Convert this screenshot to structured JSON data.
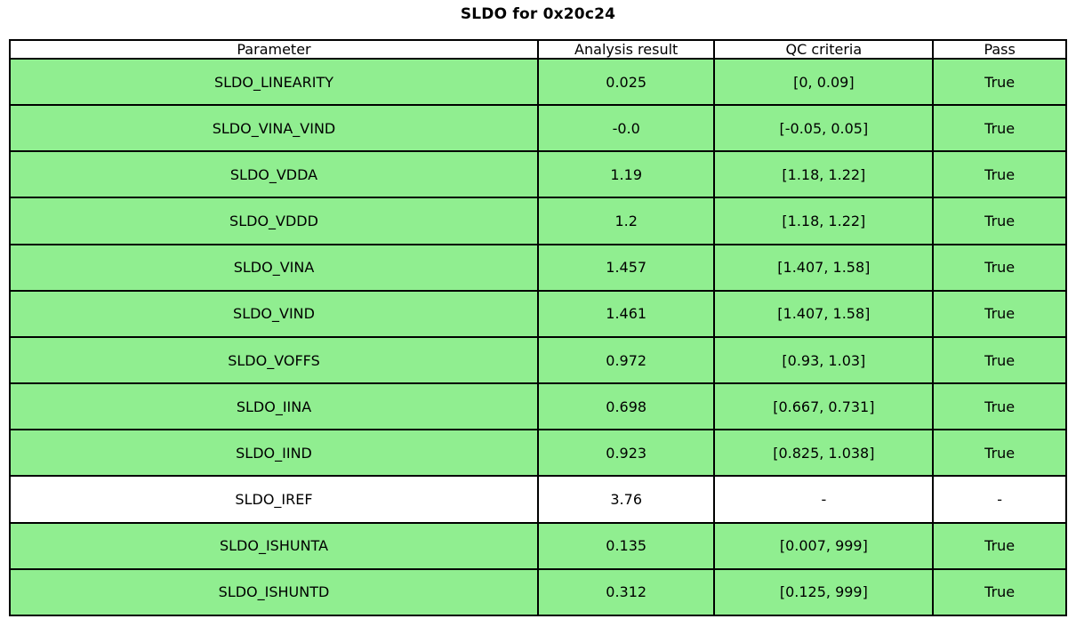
{
  "title": "SLDO for 0x20c24",
  "colors": {
    "pass_green": "#90ee90",
    "border": "#000000",
    "background": "#ffffff"
  },
  "chart_data": {
    "type": "table",
    "title": "SLDO for 0x20c24",
    "columns": [
      "Parameter",
      "Analysis result",
      "QC criteria",
      "Pass"
    ],
    "rows": [
      [
        "SLDO_LINEARITY",
        "0.025",
        "[0, 0.09]",
        "True"
      ],
      [
        "SLDO_VINA_VIND",
        "-0.0",
        "[-0.05, 0.05]",
        "True"
      ],
      [
        "SLDO_VDDA",
        "1.19",
        "[1.18, 1.22]",
        "True"
      ],
      [
        "SLDO_VDDD",
        "1.2",
        "[1.18, 1.22]",
        "True"
      ],
      [
        "SLDO_VINA",
        "1.457",
        "[1.407, 1.58]",
        "True"
      ],
      [
        "SLDO_VIND",
        "1.461",
        "[1.407, 1.58]",
        "True"
      ],
      [
        "SLDO_VOFFS",
        "0.972",
        "[0.93, 1.03]",
        "True"
      ],
      [
        "SLDO_IINA",
        "0.698",
        "[0.667, 0.731]",
        "True"
      ],
      [
        "SLDO_IIND",
        "0.923",
        "[0.825, 1.038]",
        "True"
      ],
      [
        "SLDO_IREF",
        "3.76",
        "-",
        "-"
      ],
      [
        "SLDO_ISHUNTA",
        "0.135",
        "[0.007, 999]",
        "True"
      ],
      [
        "SLDO_ISHUNTD",
        "0.312",
        "[0.125, 999]",
        "True"
      ]
    ],
    "row_green": [
      true,
      true,
      true,
      true,
      true,
      true,
      true,
      true,
      true,
      false,
      true,
      true
    ],
    "layout": {
      "grid": true,
      "cell_text_align": "center",
      "highlight_color": "#90ee90"
    }
  }
}
